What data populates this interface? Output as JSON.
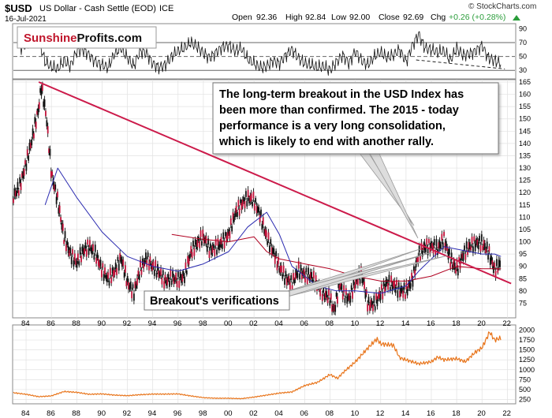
{
  "header": {
    "symbol": "$USD",
    "description": "US Dollar - Cash Settle (EOD)",
    "exchange": "ICE",
    "date": "16-Jul-2021",
    "open_label": "Open",
    "open": "92.36",
    "high_label": "High",
    "high": "92.84",
    "low_label": "Low",
    "low": "92.00",
    "close_label": "Close",
    "close": "92.69",
    "chg_label": "Chg",
    "chg": "+0.26 (+0.28%)",
    "credit": "© StockCharts.com",
    "chg_color": "#2a9d3a"
  },
  "logo": {
    "part1": "Sunshine",
    "part2": "Profits.com",
    "part1_color": "#c0162c"
  },
  "annotations": {
    "main": [
      "The long-term breakout in the USD Index has",
      "been more than confirmed. The 2015 - today",
      "performance is a very long consolidation,",
      "which is likely to end with another rally."
    ],
    "breakout": "Breakout's verifications"
  },
  "colors": {
    "trendline": "#cc1a4a",
    "blue_ma": "#2a2ab0",
    "red_ma": "#b00020",
    "rsi_line": "#111111",
    "lower_series": "#e8741a",
    "gridline": "#e2e2e2"
  },
  "chart_data": [
    {
      "type": "line",
      "panel": "indicator (RSI)",
      "y_ticks": [
        30,
        50,
        70,
        90
      ],
      "ylim": [
        20,
        95
      ],
      "reference_lines": [
        30,
        50,
        70
      ],
      "series": [
        {
          "x": [
            1983.5,
            1984,
            1984.5,
            1985,
            1985.5,
            1986,
            1986.5,
            1987,
            1987.5,
            1988,
            1988.5,
            1989,
            1989.5,
            1990,
            1990.5,
            1991,
            1991.5,
            1992,
            1992.5,
            1993,
            1993.5,
            1994,
            1994.5,
            1995,
            1995.5,
            1996,
            1996.5,
            1997,
            1997.5,
            1998,
            1998.5,
            1999,
            1999.5,
            2000,
            2000.5,
            2001,
            2001.5,
            2002,
            2002.5,
            2003,
            2003.5,
            2004,
            2004.5,
            2005,
            2005.5,
            2006,
            2006.5,
            2007,
            2007.5,
            2008,
            2008.5,
            2009,
            2009.5,
            2010,
            2010.5,
            2011,
            2011.5,
            2012,
            2012.5,
            2013,
            2013.5,
            2014,
            2014.5,
            2015,
            2015.5,
            2016,
            2016.5,
            2017,
            2017.5,
            2018,
            2018.5,
            2019,
            2019.5,
            2020,
            2020.5,
            2021,
            2021.5
          ],
          "values": [
            62,
            68,
            82,
            74,
            42,
            35,
            32,
            44,
            36,
            58,
            60,
            52,
            42,
            38,
            34,
            55,
            62,
            48,
            36,
            58,
            55,
            40,
            34,
            38,
            50,
            58,
            62,
            70,
            64,
            55,
            48,
            56,
            64,
            66,
            58,
            62,
            46,
            40,
            34,
            36,
            44,
            40,
            52,
            60,
            48,
            40,
            38,
            34,
            36,
            30,
            42,
            52,
            40,
            58,
            44,
            38,
            50,
            56,
            48,
            52,
            60,
            42,
            66,
            82,
            62,
            60,
            56,
            58,
            44,
            62,
            52,
            54,
            58,
            66,
            48,
            44,
            40
          ]
        }
      ],
      "support_line": {
        "x": [
          2014.8,
          2021.8
        ],
        "values": [
          45,
          32
        ]
      }
    },
    {
      "type": "line",
      "panel": "price",
      "title": "$USD US Dollar - Cash Settle (EOD) ICE",
      "ylim": [
        70,
        165
      ],
      "y_ticks": [
        75,
        80,
        85,
        90,
        95,
        100,
        105,
        110,
        115,
        120,
        125,
        130,
        135,
        140,
        145,
        150,
        155,
        160,
        165
      ],
      "x_ticks": [
        "84",
        "86",
        "88",
        "90",
        "92",
        "94",
        "96",
        "98",
        "00",
        "02",
        "04",
        "06",
        "08",
        "10",
        "12",
        "14",
        "16",
        "18",
        "20",
        "22"
      ],
      "series": [
        {
          "x": [
            1983,
            1983.5,
            1984,
            1984.5,
            1985,
            1985.2,
            1985.6,
            1986,
            1986.5,
            1987,
            1987.5,
            1988,
            1988.5,
            1989,
            1989.5,
            1990,
            1990.5,
            1991,
            1991.5,
            1992,
            1992.5,
            1993,
            1993.5,
            1994,
            1994.5,
            1995,
            1995.5,
            1996,
            1996.5,
            1997,
            1997.5,
            1998,
            1998.5,
            1999,
            1999.5,
            2000,
            2000.5,
            2001,
            2001.5,
            2002,
            2002.5,
            2003,
            2003.5,
            2004,
            2004.5,
            2005,
            2005.5,
            2006,
            2006.5,
            2007,
            2007.5,
            2008,
            2008.3,
            2008.8,
            2009,
            2009.5,
            2010,
            2010.5,
            2011,
            2011.5,
            2012,
            2012.5,
            2013,
            2013.5,
            2014,
            2014.5,
            2015,
            2015.5,
            2016,
            2016.5,
            2017,
            2017.5,
            2018,
            2018.5,
            2019,
            2019.5,
            2020,
            2020.5,
            2021,
            2021.5
          ],
          "values": [
            119,
            124,
            133,
            142,
            153,
            162,
            150,
            128,
            118,
            103,
            95,
            90,
            95,
            98,
            96,
            90,
            85,
            87,
            92,
            83,
            80,
            90,
            94,
            89,
            86,
            83,
            86,
            86,
            87,
            95,
            98,
            101,
            97,
            99,
            101,
            103,
            110,
            114,
            118,
            118,
            112,
            102,
            95,
            88,
            85,
            84,
            90,
            87,
            85,
            81,
            78,
            78,
            73,
            85,
            80,
            76,
            82,
            86,
            75,
            76,
            80,
            83,
            81,
            79,
            80,
            86,
            96,
            98,
            97,
            96,
            101,
            94,
            90,
            95,
            97,
            98,
            99,
            97,
            90,
            92
          ]
        },
        {
          "name": "",
          "x": [
            1985.5,
            1986.5,
            1988,
            1990,
            1992,
            1994,
            1996,
            1998,
            2000,
            2001.5,
            2003,
            2004,
            2005,
            2007,
            2008.5,
            2010,
            2012,
            2014,
            2015,
            2016,
            2017,
            2018,
            2019,
            2020,
            2021,
            2021.5
          ],
          "values": [
            115,
            130,
            118,
            104,
            94,
            90,
            88,
            91,
            96,
            106,
            112,
            103,
            90,
            82,
            80,
            80,
            79,
            82,
            88,
            93,
            98,
            97,
            96,
            95,
            95,
            94
          ]
        },
        {
          "name": "",
          "x": [
            1995.5,
            1998,
            2000,
            2002,
            2003,
            2004,
            2006,
            2008,
            2010,
            2012,
            2014,
            2016,
            2018,
            2020,
            2021.5
          ],
          "values": [
            103,
            101,
            100,
            102,
            96,
            93,
            91,
            89,
            86,
            84,
            84,
            86,
            90,
            89,
            89
          ]
        }
      ],
      "trendline": {
        "x": [
          1985.0,
          2022.3
        ],
        "values": [
          165,
          83
        ]
      }
    },
    {
      "type": "line",
      "panel": "lower comparison",
      "ylim": [
        200,
        2050
      ],
      "y_ticks": [
        250,
        500,
        750,
        1000,
        1250,
        1500,
        1750,
        2000
      ],
      "x_ticks": [
        "84",
        "86",
        "88",
        "90",
        "92",
        "94",
        "96",
        "98",
        "00",
        "02",
        "04",
        "06",
        "08",
        "10",
        "12",
        "14",
        "16",
        "18",
        "20",
        "22"
      ],
      "series": [
        {
          "x": [
            1983,
            1984,
            1985,
            1986,
            1987,
            1988,
            1989,
            1990,
            1991,
            1992,
            1993,
            1994,
            1995,
            1996,
            1997,
            1998,
            1999,
            2000,
            2001,
            2002,
            2003,
            2004,
            2005,
            2006,
            2007,
            2008,
            2008.6,
            2009,
            2010,
            2011,
            2011.7,
            2012,
            2013,
            2013.5,
            2014,
            2015,
            2016,
            2016.5,
            2017,
            2018,
            2018.7,
            2019,
            2019.5,
            2020,
            2020.6,
            2021,
            2021.5
          ],
          "values": [
            420,
            380,
            320,
            340,
            450,
            430,
            380,
            390,
            360,
            345,
            370,
            385,
            385,
            390,
            340,
            295,
            280,
            280,
            270,
            310,
            360,
            410,
            440,
            600,
            680,
            880,
            780,
            920,
            1200,
            1550,
            1780,
            1650,
            1620,
            1300,
            1250,
            1150,
            1200,
            1320,
            1250,
            1280,
            1200,
            1300,
            1450,
            1550,
            1950,
            1750,
            1800
          ]
        }
      ]
    }
  ]
}
